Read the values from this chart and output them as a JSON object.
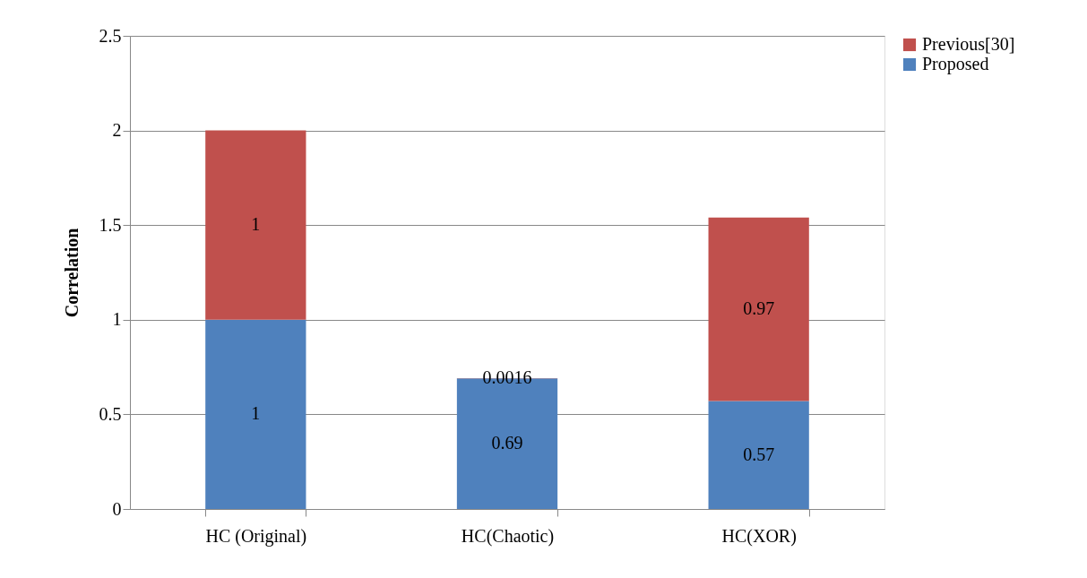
{
  "chart_data": {
    "type": "bar",
    "stacked": true,
    "ylabel": "Correlation",
    "categories": [
      "HC (Original)",
      "HC(Chaotic)",
      "HC(XOR)"
    ],
    "series": [
      {
        "name": "Proposed",
        "color": "#4f81bd",
        "values": [
          1,
          0.69,
          0.57
        ]
      },
      {
        "name": "Previous[30]",
        "color": "#c0504d",
        "values": [
          1,
          0.0016,
          0.97
        ]
      }
    ],
    "ylim": [
      0,
      2.5
    ],
    "yticks": [
      0,
      0.5,
      1,
      1.5,
      2,
      2.5
    ],
    "grid": "y",
    "legend": "right",
    "data_labels": true
  }
}
